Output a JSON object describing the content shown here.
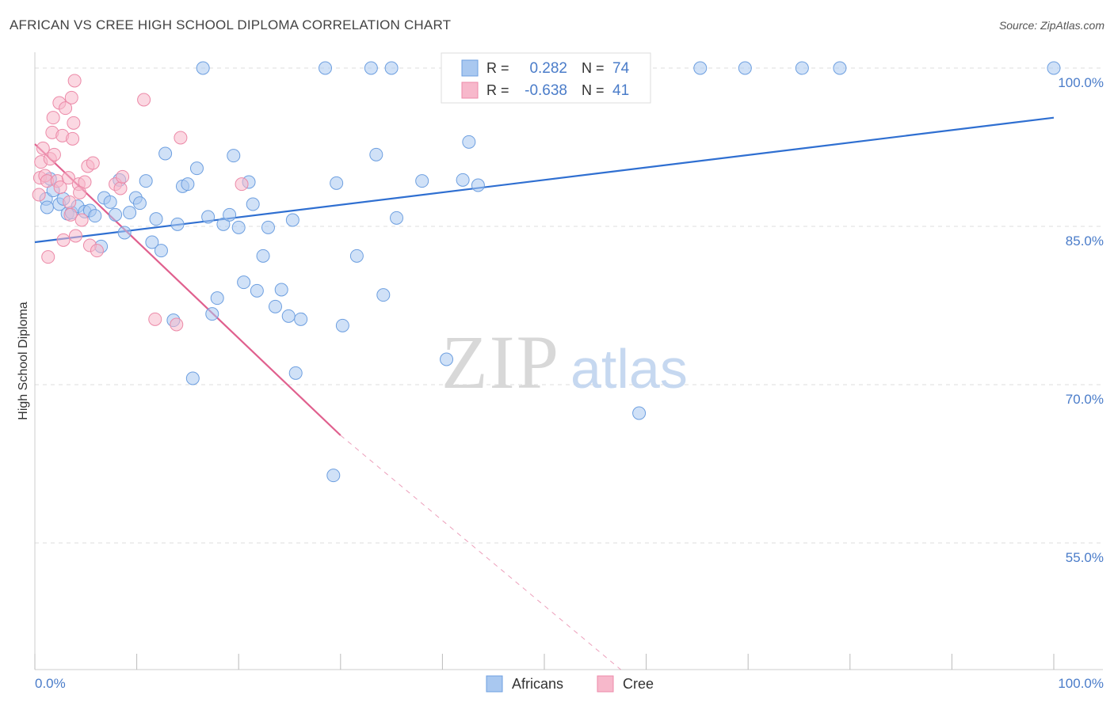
{
  "title": "AFRICAN VS CREE HIGH SCHOOL DIPLOMA CORRELATION CHART",
  "source": "Source: ZipAtlas.com",
  "watermark": {
    "zip": "ZIP",
    "atlas": "atlas"
  },
  "colors": {
    "africans_fill": "#a9c8f0",
    "africans_stroke": "#6d9fe0",
    "africans_line": "#2f6fd1",
    "cree_fill": "#f7b8cb",
    "cree_stroke": "#ec8aa8",
    "cree_line": "#e0608e",
    "axis_label": "#4a7cc9",
    "grid": "#dddddd"
  },
  "legend_stats": {
    "r_label": "R =",
    "n_label": "N =",
    "rows": [
      {
        "series": "Africans",
        "r": "0.282",
        "n": "74"
      },
      {
        "series": "Cree",
        "r": "-0.638",
        "n": "41"
      }
    ]
  },
  "chart_data": {
    "type": "scatter",
    "title": "AFRICAN VS CREE HIGH SCHOOL DIPLOMA CORRELATION CHART",
    "xlabel": "",
    "ylabel": "High School Diploma",
    "x_tick_labels": [
      "0.0%",
      "100.0%"
    ],
    "y_tick_labels": [
      "100.0%",
      "85.0%",
      "70.0%",
      "55.0%"
    ],
    "y_ticks": [
      100,
      85,
      70,
      55
    ],
    "xlim": [
      0,
      100
    ],
    "ylim": [
      43,
      101.5
    ],
    "grid": true,
    "legend_position": "bottom-center",
    "series": [
      {
        "name": "Africans",
        "r": 0.282,
        "n": 74,
        "trend": {
          "x": [
            0,
            100
          ],
          "y": [
            83.5,
            95.3
          ]
        },
        "points": [
          [
            1.1,
            87.6
          ],
          [
            1.2,
            86.8
          ],
          [
            1.8,
            88.4
          ],
          [
            2.4,
            87.1
          ],
          [
            2.8,
            87.6
          ],
          [
            3.2,
            86.2
          ],
          [
            3.6,
            86.3
          ],
          [
            4.2,
            86.9
          ],
          [
            4.9,
            86.4
          ],
          [
            5.4,
            86.5
          ],
          [
            5.9,
            86.0
          ],
          [
            6.5,
            83.1
          ],
          [
            6.8,
            87.7
          ],
          [
            7.4,
            87.3
          ],
          [
            7.9,
            86.1
          ],
          [
            8.3,
            89.4
          ],
          [
            8.8,
            84.4
          ],
          [
            9.3,
            86.3
          ],
          [
            9.9,
            87.7
          ],
          [
            10.3,
            87.2
          ],
          [
            10.9,
            89.3
          ],
          [
            11.5,
            83.5
          ],
          [
            11.9,
            85.7
          ],
          [
            12.4,
            82.7
          ],
          [
            12.8,
            91.9
          ],
          [
            13.6,
            76.1
          ],
          [
            14.0,
            85.2
          ],
          [
            14.5,
            88.8
          ],
          [
            15.0,
            89.0
          ],
          [
            15.5,
            70.6
          ],
          [
            15.9,
            90.5
          ],
          [
            16.5,
            100.0
          ],
          [
            17.0,
            85.9
          ],
          [
            17.4,
            76.7
          ],
          [
            17.9,
            78.2
          ],
          [
            18.5,
            85.2
          ],
          [
            19.1,
            86.1
          ],
          [
            19.5,
            91.7
          ],
          [
            20.0,
            84.9
          ],
          [
            20.5,
            79.7
          ],
          [
            21.0,
            89.2
          ],
          [
            21.4,
            87.1
          ],
          [
            21.8,
            78.9
          ],
          [
            22.4,
            82.2
          ],
          [
            22.9,
            84.9
          ],
          [
            23.6,
            77.4
          ],
          [
            24.2,
            79.0
          ],
          [
            24.9,
            76.5
          ],
          [
            25.3,
            85.6
          ],
          [
            25.6,
            71.1
          ],
          [
            26.1,
            76.2
          ],
          [
            28.5,
            100.0
          ],
          [
            29.3,
            61.4
          ],
          [
            29.6,
            89.1
          ],
          [
            30.2,
            75.6
          ],
          [
            31.6,
            82.2
          ],
          [
            33.0,
            100.0
          ],
          [
            33.5,
            91.8
          ],
          [
            34.2,
            78.5
          ],
          [
            35.0,
            100.0
          ],
          [
            35.5,
            85.8
          ],
          [
            38.0,
            89.3
          ],
          [
            40.4,
            72.4
          ],
          [
            42.0,
            89.4
          ],
          [
            42.6,
            93.0
          ],
          [
            43.5,
            88.9
          ],
          [
            49.0,
            100.0
          ],
          [
            59.3,
            67.3
          ],
          [
            65.3,
            100.0
          ],
          [
            69.7,
            100.0
          ],
          [
            75.3,
            100.0
          ],
          [
            79.0,
            100.0
          ],
          [
            100.0,
            100.0
          ],
          [
            1.5,
            89.5
          ]
        ]
      },
      {
        "name": "Cree",
        "r": -0.638,
        "n": 41,
        "trend": {
          "x": [
            0,
            30
          ],
          "y": [
            92.8,
            65.2
          ]
        },
        "trend_dashed": {
          "x": [
            30,
            57.5
          ],
          "y": [
            65.2,
            43.0
          ]
        },
        "points": [
          [
            0.4,
            88.0
          ],
          [
            0.5,
            89.6
          ],
          [
            0.6,
            91.1
          ],
          [
            0.8,
            92.4
          ],
          [
            1.0,
            89.8
          ],
          [
            1.2,
            89.3
          ],
          [
            1.3,
            82.1
          ],
          [
            1.5,
            91.4
          ],
          [
            1.7,
            93.9
          ],
          [
            1.8,
            95.3
          ],
          [
            1.9,
            91.8
          ],
          [
            2.2,
            89.3
          ],
          [
            2.4,
            96.7
          ],
          [
            2.5,
            88.7
          ],
          [
            2.7,
            93.6
          ],
          [
            2.8,
            83.7
          ],
          [
            3.0,
            96.2
          ],
          [
            3.3,
            89.6
          ],
          [
            3.4,
            87.3
          ],
          [
            3.5,
            86.1
          ],
          [
            3.6,
            97.2
          ],
          [
            3.7,
            93.3
          ],
          [
            3.8,
            94.8
          ],
          [
            3.9,
            98.8
          ],
          [
            4.0,
            84.1
          ],
          [
            4.3,
            89.0
          ],
          [
            4.4,
            88.2
          ],
          [
            4.6,
            85.6
          ],
          [
            4.9,
            89.2
          ],
          [
            5.2,
            90.7
          ],
          [
            5.4,
            83.2
          ],
          [
            5.7,
            91.0
          ],
          [
            6.1,
            82.7
          ],
          [
            7.9,
            89.0
          ],
          [
            8.4,
            88.6
          ],
          [
            8.6,
            89.7
          ],
          [
            10.7,
            97.0
          ],
          [
            11.8,
            76.2
          ],
          [
            13.9,
            75.7
          ],
          [
            14.3,
            93.4
          ],
          [
            20.3,
            89.0
          ]
        ]
      }
    ]
  }
}
